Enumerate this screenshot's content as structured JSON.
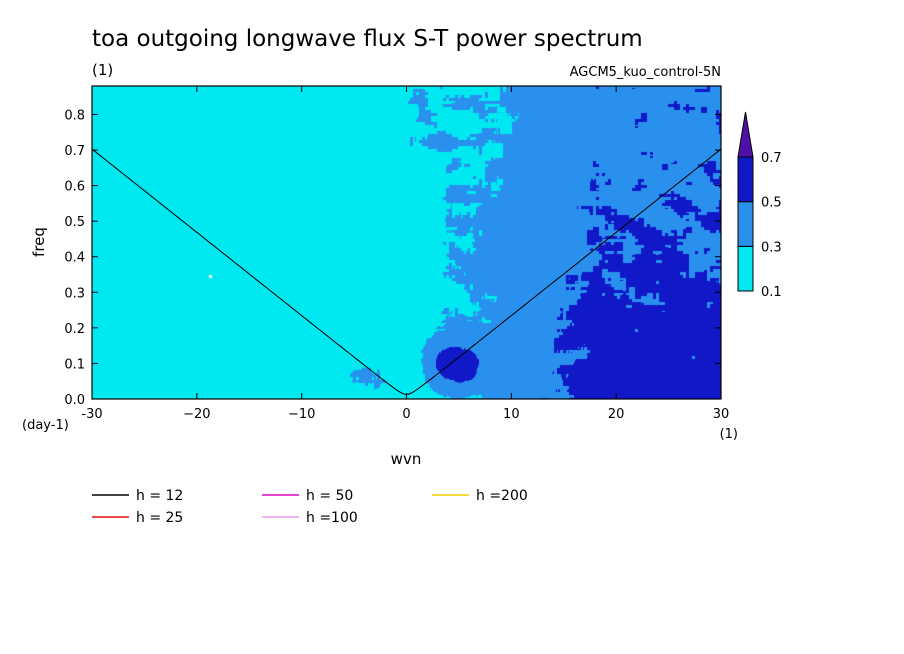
{
  "chart_data": {
    "type": "heatmap",
    "title": "toa outgoing longwave flux S-T power spectrum",
    "subtitle_left": "(1)",
    "subtitle_right": "AGCM5_kuo_control-5N",
    "xlabel": "wvn",
    "ylabel": "freq",
    "x_unit": "(1)",
    "y_unit": "(day-1)",
    "xlim": [
      -30,
      30
    ],
    "ylim": [
      0,
      0.88
    ],
    "x_ticks": [
      -30,
      -20,
      -10,
      0,
      10,
      20,
      30
    ],
    "x_tick_labels": [
      "-30",
      "−20",
      "−10",
      "0",
      "10",
      "20",
      "30"
    ],
    "y_ticks": [
      0.0,
      0.1,
      0.2,
      0.3,
      0.4,
      0.5,
      0.6,
      0.7,
      0.8
    ],
    "y_tick_labels": [
      "0.0",
      "0.1",
      "0.2",
      "0.3",
      "0.4",
      "0.5",
      "0.6",
      "0.7",
      "0.8"
    ],
    "colorbar": {
      "levels": [
        0.1,
        0.3,
        0.5,
        0.7
      ],
      "level_labels": [
        "0.1",
        "0.3",
        "0.5",
        "0.7"
      ],
      "colors": [
        "#00e8f0",
        "#2a90ee",
        "#1018c8",
        "#5010a8"
      ],
      "below_color": "#ffffff",
      "extend": "max"
    },
    "dispersion_curves": [
      {
        "name": "h = 12",
        "h": 12,
        "color": "#000000"
      },
      {
        "name": "h = 25",
        "h": 25,
        "color": "#e01010"
      },
      {
        "name": "h = 50",
        "h": 50,
        "color": "#e000c0"
      },
      {
        "name": "h =100",
        "h": 100,
        "color": "#e89ae8"
      },
      {
        "name": "h =200",
        "h": 200,
        "color": "#f0d000"
      }
    ],
    "legend_placement": "bottom",
    "notes_from_figure": "Power is higher (0.3-0.5) for positive wavenumbers below the dispersion curves; a peak of 0.5-0.7 occurs near wvn 2-6, freq 0-0.15."
  }
}
